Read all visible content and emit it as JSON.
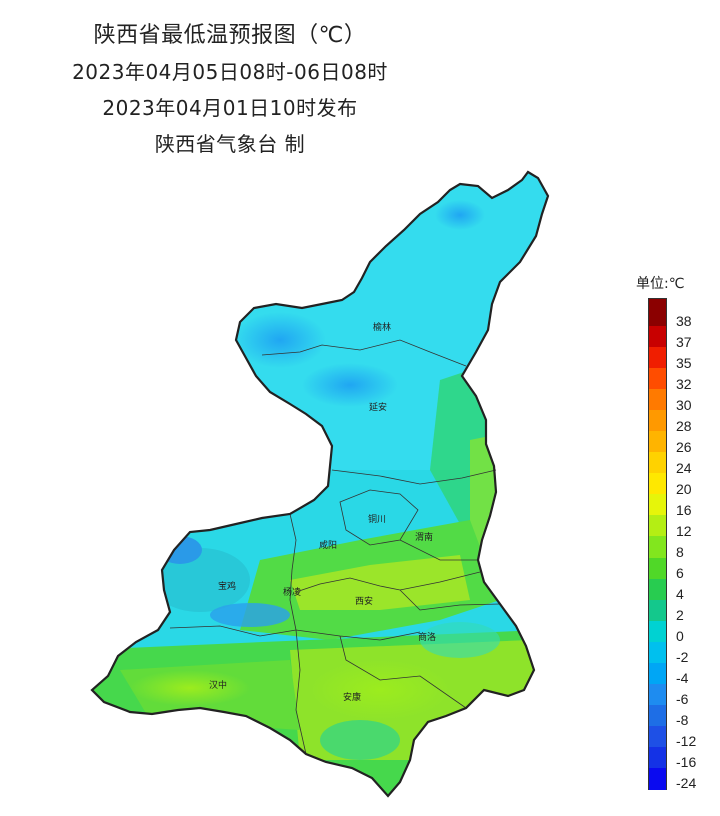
{
  "header": {
    "title": "陕西省最低温预报图（℃）",
    "period": "2023年04月05日08时-06日08时",
    "issued": "2023年04月01日10时发布",
    "agency": "陕西省气象台 制"
  },
  "cities": [
    "榆林",
    "延安",
    "铜川",
    "咸阳",
    "渭南",
    "宝鸡",
    "杨凌",
    "西安",
    "商洛",
    "汉中",
    "安康"
  ],
  "legend": {
    "title": "单位:℃",
    "labels": [
      "38",
      "37",
      "35",
      "32",
      "30",
      "28",
      "26",
      "24",
      "20",
      "16",
      "12",
      "8",
      "6",
      "4",
      "2",
      "0",
      "-2",
      "-4",
      "-6",
      "-8",
      "-12",
      "-16",
      "-24"
    ],
    "colors": [
      "#8b0000",
      "#c80000",
      "#f01e00",
      "#ff4d00",
      "#ff7a00",
      "#ff9900",
      "#ffb400",
      "#ffd200",
      "#ffe800",
      "#e6f50a",
      "#b4ee14",
      "#82e61e",
      "#50d828",
      "#28cc50",
      "#14c88c",
      "#00d2d2",
      "#00c0ee",
      "#00a6f5",
      "#1e8cf0",
      "#1e6ee6",
      "#1e50e6",
      "#1432e6",
      "#0a0af0"
    ]
  }
}
